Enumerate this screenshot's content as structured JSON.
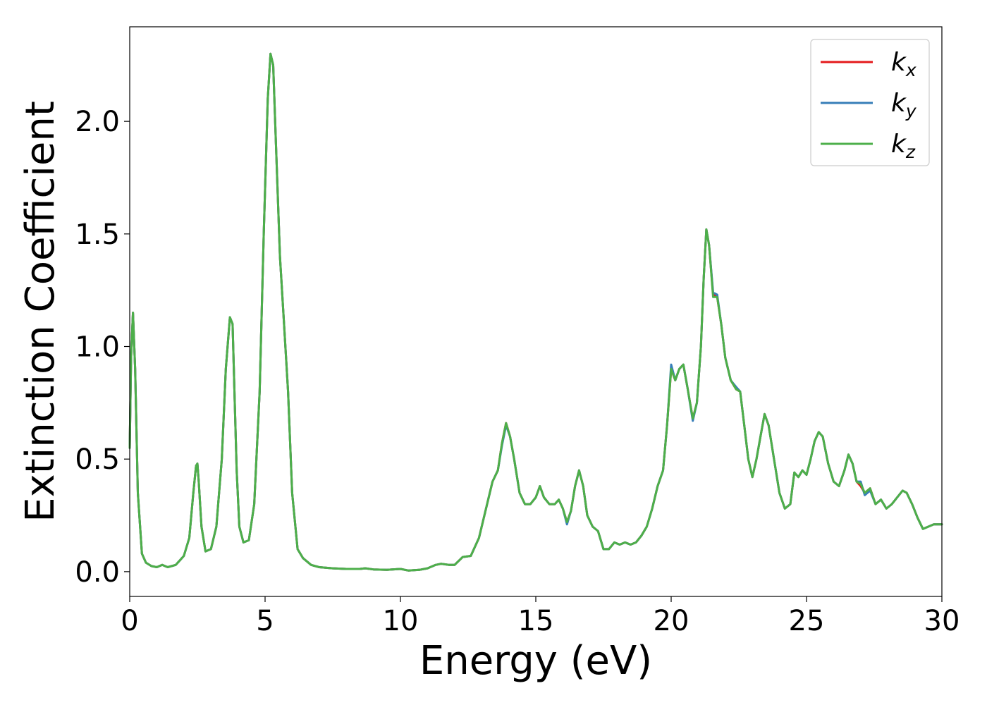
{
  "chart_data": {
    "type": "line",
    "xlabel": "Energy (eV)",
    "ylabel": "Extinction Coefficient",
    "xlim": [
      0,
      30
    ],
    "ylim": [
      -0.11,
      2.42
    ],
    "xticks": [
      0,
      5,
      10,
      15,
      20,
      25,
      30
    ],
    "xtick_labels": [
      "0",
      "5",
      "10",
      "15",
      "20",
      "25",
      "30"
    ],
    "yticks": [
      0.0,
      0.5,
      1.0,
      1.5,
      2.0
    ],
    "ytick_labels": [
      "0.0",
      "0.5",
      "1.0",
      "1.5",
      "2.0"
    ],
    "grid": false,
    "legend_position": "top-right",
    "series": [
      {
        "name": "k",
        "subscript": "x",
        "color": "#e41a1c",
        "x": [
          0.0,
          0.05,
          0.12,
          0.2,
          0.3,
          0.45,
          0.6,
          0.8,
          1.0,
          1.2,
          1.4,
          1.7,
          2.0,
          2.2,
          2.35,
          2.45,
          2.5,
          2.55,
          2.65,
          2.8,
          3.0,
          3.2,
          3.4,
          3.55,
          3.7,
          3.8,
          3.88,
          3.95,
          4.05,
          4.2,
          4.4,
          4.6,
          4.8,
          4.95,
          5.1,
          5.2,
          5.3,
          5.4,
          5.55,
          5.7,
          5.85,
          6.0,
          6.2,
          6.4,
          6.7,
          7.0,
          7.5,
          8.0,
          8.5,
          8.7,
          9.0,
          9.5,
          10.0,
          10.3,
          10.7,
          11.0,
          11.3,
          11.5,
          11.8,
          12.0,
          12.3,
          12.6,
          12.9,
          13.2,
          13.4,
          13.6,
          13.75,
          13.9,
          14.05,
          14.2,
          14.4,
          14.6,
          14.8,
          15.0,
          15.15,
          15.3,
          15.5,
          15.7,
          15.85,
          16.0,
          16.15,
          16.3,
          16.45,
          16.6,
          16.75,
          16.9,
          17.1,
          17.3,
          17.5,
          17.7,
          17.9,
          18.1,
          18.3,
          18.5,
          18.7,
          18.9,
          19.1,
          19.3,
          19.5,
          19.7,
          19.85,
          20.0,
          20.15,
          20.3,
          20.45,
          20.6,
          20.8,
          20.95,
          21.1,
          21.2,
          21.3,
          21.4,
          21.55,
          21.7,
          21.85,
          22.0,
          22.2,
          22.4,
          22.55,
          22.7,
          22.85,
          23.0,
          23.15,
          23.3,
          23.45,
          23.6,
          23.8,
          24.0,
          24.2,
          24.4,
          24.55,
          24.7,
          24.85,
          25.0,
          25.15,
          25.3,
          25.45,
          25.6,
          25.8,
          26.0,
          26.2,
          26.4,
          26.55,
          26.7,
          26.85,
          27.0,
          27.15,
          27.35,
          27.55,
          27.75,
          27.95,
          28.15,
          28.35,
          28.55,
          28.7,
          28.9,
          29.1,
          29.3,
          29.5,
          29.7,
          30.0
        ],
        "y": [
          0.55,
          0.95,
          1.15,
          0.9,
          0.35,
          0.08,
          0.04,
          0.025,
          0.02,
          0.03,
          0.02,
          0.03,
          0.07,
          0.15,
          0.35,
          0.47,
          0.48,
          0.4,
          0.2,
          0.09,
          0.1,
          0.2,
          0.5,
          0.9,
          1.13,
          1.1,
          0.75,
          0.45,
          0.2,
          0.13,
          0.14,
          0.3,
          0.8,
          1.5,
          2.1,
          2.3,
          2.25,
          1.9,
          1.4,
          1.1,
          0.8,
          0.35,
          0.1,
          0.06,
          0.03,
          0.02,
          0.015,
          0.012,
          0.012,
          0.015,
          0.01,
          0.008,
          0.012,
          0.005,
          0.008,
          0.015,
          0.03,
          0.035,
          0.03,
          0.03,
          0.065,
          0.07,
          0.15,
          0.3,
          0.4,
          0.45,
          0.57,
          0.66,
          0.6,
          0.5,
          0.35,
          0.3,
          0.3,
          0.33,
          0.38,
          0.33,
          0.3,
          0.3,
          0.32,
          0.28,
          0.22,
          0.27,
          0.38,
          0.45,
          0.38,
          0.25,
          0.2,
          0.18,
          0.1,
          0.1,
          0.13,
          0.12,
          0.13,
          0.12,
          0.13,
          0.16,
          0.2,
          0.28,
          0.38,
          0.45,
          0.65,
          0.9,
          0.85,
          0.9,
          0.92,
          0.82,
          0.68,
          0.75,
          1.0,
          1.3,
          1.52,
          1.45,
          1.23,
          1.22,
          1.1,
          0.95,
          0.85,
          0.81,
          0.8,
          0.65,
          0.5,
          0.42,
          0.5,
          0.6,
          0.7,
          0.65,
          0.5,
          0.35,
          0.28,
          0.3,
          0.44,
          0.42,
          0.45,
          0.43,
          0.5,
          0.58,
          0.62,
          0.6,
          0.48,
          0.4,
          0.38,
          0.45,
          0.52,
          0.48,
          0.4,
          0.38,
          0.35,
          0.37,
          0.3,
          0.32,
          0.28,
          0.3,
          0.33,
          0.36,
          0.35,
          0.3,
          0.24,
          0.19,
          0.2,
          0.21,
          0.21
        ]
      },
      {
        "name": "k",
        "subscript": "y",
        "color": "#377eb8",
        "x": [
          0.0,
          0.05,
          0.12,
          0.2,
          0.3,
          0.45,
          0.6,
          0.8,
          1.0,
          1.2,
          1.4,
          1.7,
          2.0,
          2.2,
          2.35,
          2.45,
          2.5,
          2.55,
          2.65,
          2.8,
          3.0,
          3.2,
          3.4,
          3.55,
          3.7,
          3.8,
          3.88,
          3.95,
          4.05,
          4.2,
          4.4,
          4.6,
          4.8,
          4.95,
          5.1,
          5.2,
          5.3,
          5.4,
          5.55,
          5.7,
          5.85,
          6.0,
          6.2,
          6.4,
          6.7,
          7.0,
          7.5,
          8.0,
          8.5,
          8.7,
          9.0,
          9.5,
          10.0,
          10.3,
          10.7,
          11.0,
          11.3,
          11.5,
          11.8,
          12.0,
          12.3,
          12.6,
          12.9,
          13.2,
          13.4,
          13.6,
          13.75,
          13.9,
          14.05,
          14.2,
          14.4,
          14.6,
          14.8,
          15.0,
          15.15,
          15.3,
          15.5,
          15.7,
          15.85,
          16.0,
          16.15,
          16.3,
          16.45,
          16.6,
          16.75,
          16.9,
          17.1,
          17.3,
          17.5,
          17.7,
          17.9,
          18.1,
          18.3,
          18.5,
          18.7,
          18.9,
          19.1,
          19.3,
          19.5,
          19.7,
          19.85,
          20.0,
          20.15,
          20.3,
          20.45,
          20.6,
          20.8,
          20.95,
          21.1,
          21.2,
          21.3,
          21.4,
          21.55,
          21.7,
          21.85,
          22.0,
          22.2,
          22.4,
          22.55,
          22.7,
          22.85,
          23.0,
          23.15,
          23.3,
          23.45,
          23.6,
          23.8,
          24.0,
          24.2,
          24.4,
          24.55,
          24.7,
          24.85,
          25.0,
          25.15,
          25.3,
          25.45,
          25.6,
          25.8,
          26.0,
          26.2,
          26.4,
          26.55,
          26.7,
          26.85,
          27.0,
          27.15,
          27.35,
          27.55,
          27.75,
          27.95,
          28.15,
          28.35,
          28.55,
          28.7,
          28.9,
          29.1,
          29.3,
          29.5,
          29.7,
          30.0
        ],
        "y": [
          0.55,
          0.95,
          1.15,
          0.9,
          0.35,
          0.08,
          0.04,
          0.025,
          0.02,
          0.03,
          0.02,
          0.03,
          0.07,
          0.15,
          0.35,
          0.47,
          0.48,
          0.4,
          0.2,
          0.09,
          0.1,
          0.2,
          0.5,
          0.9,
          1.13,
          1.1,
          0.75,
          0.45,
          0.2,
          0.13,
          0.14,
          0.3,
          0.8,
          1.5,
          2.1,
          2.3,
          2.25,
          1.9,
          1.4,
          1.1,
          0.8,
          0.35,
          0.1,
          0.06,
          0.03,
          0.02,
          0.015,
          0.012,
          0.012,
          0.015,
          0.01,
          0.008,
          0.012,
          0.005,
          0.008,
          0.015,
          0.03,
          0.035,
          0.03,
          0.03,
          0.065,
          0.07,
          0.15,
          0.3,
          0.4,
          0.45,
          0.56,
          0.65,
          0.6,
          0.5,
          0.35,
          0.3,
          0.3,
          0.33,
          0.38,
          0.33,
          0.3,
          0.3,
          0.32,
          0.28,
          0.21,
          0.27,
          0.38,
          0.45,
          0.38,
          0.25,
          0.2,
          0.18,
          0.1,
          0.1,
          0.13,
          0.12,
          0.13,
          0.12,
          0.13,
          0.16,
          0.2,
          0.28,
          0.38,
          0.45,
          0.65,
          0.92,
          0.85,
          0.9,
          0.92,
          0.82,
          0.67,
          0.75,
          1.0,
          1.3,
          1.52,
          1.45,
          1.24,
          1.23,
          1.1,
          0.95,
          0.85,
          0.82,
          0.8,
          0.65,
          0.5,
          0.42,
          0.5,
          0.6,
          0.7,
          0.65,
          0.5,
          0.35,
          0.28,
          0.3,
          0.44,
          0.42,
          0.45,
          0.43,
          0.5,
          0.58,
          0.62,
          0.6,
          0.48,
          0.4,
          0.38,
          0.45,
          0.52,
          0.48,
          0.4,
          0.4,
          0.34,
          0.36,
          0.3,
          0.32,
          0.28,
          0.3,
          0.33,
          0.36,
          0.35,
          0.3,
          0.24,
          0.19,
          0.2,
          0.21,
          0.21
        ]
      },
      {
        "name": "k",
        "subscript": "z",
        "color": "#4daf4a",
        "x": [
          0.0,
          0.05,
          0.12,
          0.2,
          0.3,
          0.45,
          0.6,
          0.8,
          1.0,
          1.2,
          1.4,
          1.7,
          2.0,
          2.2,
          2.35,
          2.45,
          2.5,
          2.55,
          2.65,
          2.8,
          3.0,
          3.2,
          3.4,
          3.55,
          3.7,
          3.8,
          3.88,
          3.95,
          4.05,
          4.2,
          4.4,
          4.6,
          4.8,
          4.95,
          5.1,
          5.2,
          5.3,
          5.4,
          5.55,
          5.7,
          5.85,
          6.0,
          6.2,
          6.4,
          6.7,
          7.0,
          7.5,
          8.0,
          8.5,
          8.7,
          9.0,
          9.5,
          10.0,
          10.3,
          10.7,
          11.0,
          11.3,
          11.5,
          11.8,
          12.0,
          12.3,
          12.6,
          12.9,
          13.2,
          13.4,
          13.6,
          13.75,
          13.9,
          14.05,
          14.2,
          14.4,
          14.6,
          14.8,
          15.0,
          15.15,
          15.3,
          15.5,
          15.7,
          15.85,
          16.0,
          16.15,
          16.3,
          16.45,
          16.6,
          16.75,
          16.9,
          17.1,
          17.3,
          17.5,
          17.7,
          17.9,
          18.1,
          18.3,
          18.5,
          18.7,
          18.9,
          19.1,
          19.3,
          19.5,
          19.7,
          19.85,
          20.0,
          20.15,
          20.3,
          20.45,
          20.6,
          20.8,
          20.95,
          21.1,
          21.2,
          21.3,
          21.4,
          21.55,
          21.7,
          21.85,
          22.0,
          22.2,
          22.4,
          22.55,
          22.7,
          22.85,
          23.0,
          23.15,
          23.3,
          23.45,
          23.6,
          23.8,
          24.0,
          24.2,
          24.4,
          24.55,
          24.7,
          24.85,
          25.0,
          25.15,
          25.3,
          25.45,
          25.6,
          25.8,
          26.0,
          26.2,
          26.4,
          26.55,
          26.7,
          26.85,
          27.0,
          27.15,
          27.35,
          27.55,
          27.75,
          27.95,
          28.15,
          28.35,
          28.55,
          28.7,
          28.9,
          29.1,
          29.3,
          29.5,
          29.7,
          30.0
        ],
        "y": [
          0.55,
          0.95,
          1.15,
          0.9,
          0.35,
          0.08,
          0.04,
          0.025,
          0.02,
          0.03,
          0.02,
          0.03,
          0.07,
          0.15,
          0.35,
          0.47,
          0.48,
          0.4,
          0.2,
          0.09,
          0.1,
          0.2,
          0.5,
          0.9,
          1.13,
          1.1,
          0.75,
          0.45,
          0.2,
          0.13,
          0.14,
          0.3,
          0.8,
          1.5,
          2.1,
          2.3,
          2.25,
          1.9,
          1.4,
          1.1,
          0.8,
          0.35,
          0.1,
          0.06,
          0.03,
          0.02,
          0.015,
          0.012,
          0.012,
          0.015,
          0.01,
          0.008,
          0.012,
          0.005,
          0.008,
          0.015,
          0.03,
          0.035,
          0.03,
          0.03,
          0.065,
          0.07,
          0.15,
          0.3,
          0.4,
          0.45,
          0.57,
          0.66,
          0.6,
          0.5,
          0.35,
          0.3,
          0.3,
          0.33,
          0.38,
          0.33,
          0.3,
          0.3,
          0.32,
          0.28,
          0.22,
          0.27,
          0.38,
          0.45,
          0.38,
          0.25,
          0.2,
          0.18,
          0.1,
          0.1,
          0.13,
          0.12,
          0.13,
          0.12,
          0.13,
          0.16,
          0.2,
          0.28,
          0.38,
          0.45,
          0.65,
          0.9,
          0.85,
          0.9,
          0.92,
          0.82,
          0.68,
          0.75,
          1.0,
          1.3,
          1.52,
          1.45,
          1.22,
          1.22,
          1.1,
          0.95,
          0.85,
          0.81,
          0.8,
          0.65,
          0.5,
          0.42,
          0.5,
          0.6,
          0.7,
          0.65,
          0.5,
          0.35,
          0.28,
          0.3,
          0.44,
          0.42,
          0.45,
          0.43,
          0.5,
          0.58,
          0.62,
          0.6,
          0.48,
          0.4,
          0.38,
          0.45,
          0.52,
          0.48,
          0.4,
          0.39,
          0.35,
          0.37,
          0.3,
          0.32,
          0.28,
          0.3,
          0.33,
          0.36,
          0.35,
          0.3,
          0.24,
          0.19,
          0.2,
          0.21,
          0.21
        ]
      }
    ]
  }
}
